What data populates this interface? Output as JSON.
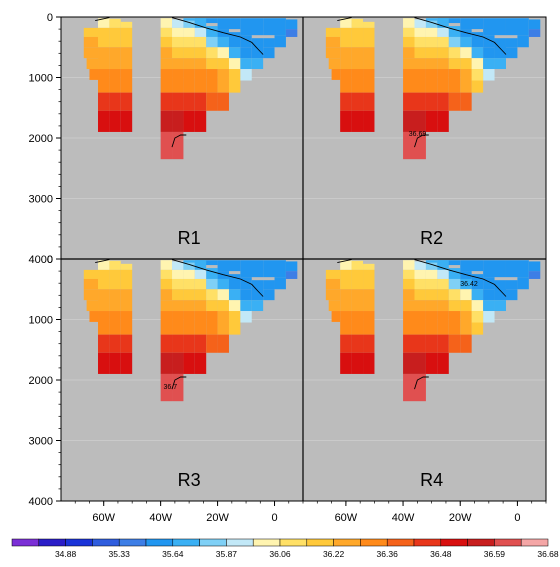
{
  "chart_data": {
    "type": "heatmap",
    "colors": {
      "land": "#bcbcbc",
      "gridline": "#d8d8d8",
      "contour": "#000000"
    },
    "y_axis": {
      "range": [
        0,
        4000
      ],
      "ticks": [
        0,
        1000,
        2000,
        3000,
        4000
      ],
      "inverted": true
    },
    "x_axis": {
      "range": [
        -75,
        10
      ],
      "ticks": [
        -60,
        -40,
        -20,
        0
      ],
      "tick_labels": [
        "60W",
        "40W",
        "20W",
        "0"
      ]
    },
    "panels": [
      {
        "label": "R1",
        "contour_label": ""
      },
      {
        "label": "R2",
        "contour_label": "36.69"
      },
      {
        "label": "R3",
        "contour_label": "36.7"
      },
      {
        "label": "R4",
        "contour_label": "36.42"
      }
    ],
    "colorbar": {
      "colors": [
        "#7b2fd6",
        "#2a1dc8",
        "#1a33d8",
        "#2f5dde",
        "#3d7ee6",
        "#2196f0",
        "#3ab0f4",
        "#7fd0f6",
        "#c2e8f7",
        "#fff4b0",
        "#ffe066",
        "#ffc93a",
        "#ffa82a",
        "#ff8a1a",
        "#f5621a",
        "#e8361a",
        "#d80f0f",
        "#c81e1e",
        "#e05050",
        "#f4a6a6"
      ],
      "labels": [
        "34.88",
        "35.33",
        "35.64",
        "35.87",
        "36.06",
        "36.22",
        "36.36",
        "36.48",
        "36.59",
        "36.68"
      ]
    }
  }
}
